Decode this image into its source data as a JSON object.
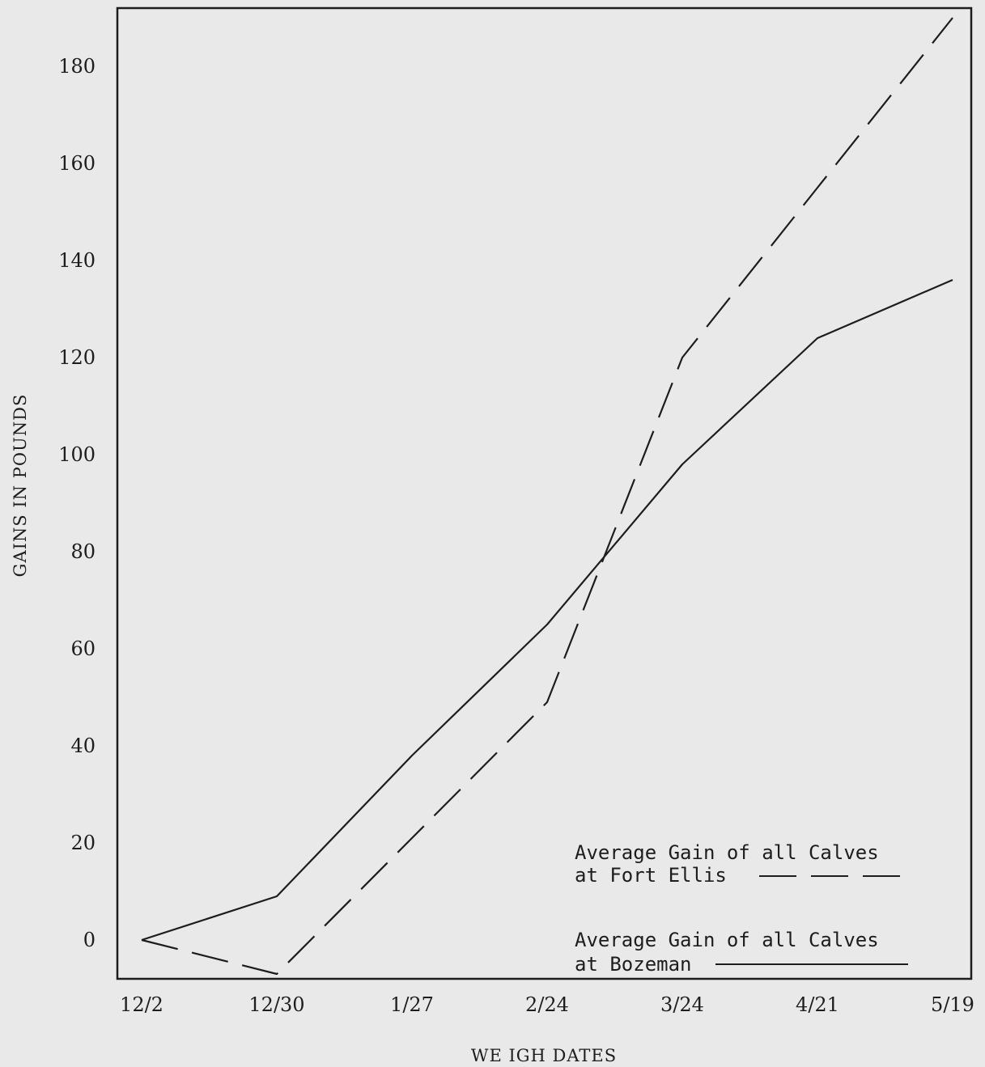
{
  "chart_data": {
    "type": "line",
    "xlabel": "WE IGH DATES",
    "ylabel": "GAINS IN POUNDS",
    "x": [
      "12/2",
      "12/30",
      "1/27",
      "2/24",
      "3/24",
      "4/21",
      "5/19"
    ],
    "y_ticks": [
      "0",
      "20",
      "40",
      "60",
      "80",
      "100",
      "120",
      "140",
      "160",
      "180"
    ],
    "ylim": [
      -8,
      192
    ],
    "grid": false,
    "series": [
      {
        "name": "Average Gain of all Calves at Fort Ellis",
        "legend_lines": [
          "Average Gain of all Calves",
          "at Fort Ellis"
        ],
        "style": "dashed",
        "values": [
          0,
          -7,
          21,
          49,
          120,
          155,
          190
        ]
      },
      {
        "name": "Average Gain of all Calves at Bozeman",
        "legend_lines": [
          "Average Gain of all Calves",
          "at Bozeman"
        ],
        "style": "solid",
        "values": [
          0,
          9,
          38,
          65,
          98,
          124,
          136
        ]
      }
    ],
    "legend_position": "bottom-right"
  },
  "colors": {
    "ink": "#1d1d1d",
    "paper": "#e9e9ea"
  }
}
